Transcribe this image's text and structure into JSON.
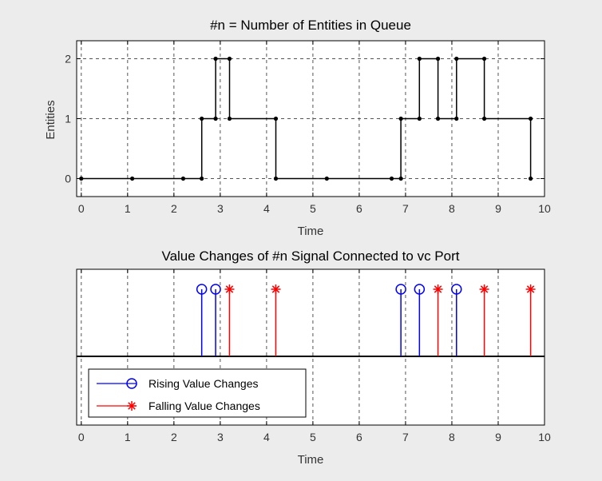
{
  "chart_data": [
    {
      "type": "line",
      "step": true,
      "title": "#n = Number of Entities in Queue",
      "xlabel": "Time",
      "ylabel": "Entities",
      "xlim": [
        -0.1,
        10
      ],
      "ylim": [
        -0.3,
        2.3
      ],
      "xticks": [
        0,
        1,
        2,
        3,
        4,
        5,
        6,
        7,
        8,
        9,
        10
      ],
      "yticks": [
        0,
        1,
        2
      ],
      "grid": true,
      "color": "#000000",
      "points": [
        [
          0,
          0
        ],
        [
          1.1,
          0
        ],
        [
          2.2,
          0
        ],
        [
          2.6,
          0
        ],
        [
          2.6,
          1
        ],
        [
          2.9,
          1
        ],
        [
          2.9,
          2
        ],
        [
          3.2,
          2
        ],
        [
          3.2,
          1
        ],
        [
          4.2,
          1
        ],
        [
          4.2,
          0
        ],
        [
          5.3,
          0
        ],
        [
          6.7,
          0
        ],
        [
          6.9,
          0
        ],
        [
          6.9,
          1
        ],
        [
          7.3,
          1
        ],
        [
          7.3,
          2
        ],
        [
          7.7,
          2
        ],
        [
          7.7,
          1
        ],
        [
          8.1,
          1
        ],
        [
          8.1,
          2
        ],
        [
          8.7,
          2
        ],
        [
          8.7,
          1
        ],
        [
          9.7,
          1
        ],
        [
          9.7,
          0
        ]
      ]
    },
    {
      "type": "stem",
      "title": "Value Changes of #n Signal Connected to vc Port",
      "xlabel": "Time",
      "xlim": [
        -0.1,
        10
      ],
      "xticks": [
        0,
        1,
        2,
        3,
        4,
        5,
        6,
        7,
        8,
        9,
        10
      ],
      "grid": true,
      "legend_position": "bottom-left",
      "series": [
        {
          "name": "Rising Value Changes",
          "marker": "circle",
          "color": "#0000ff",
          "x": [
            2.6,
            2.9,
            6.9,
            7.3,
            8.1
          ]
        },
        {
          "name": "Falling Value Changes",
          "marker": "asterisk",
          "color": "#ff0000",
          "x": [
            3.2,
            4.2,
            7.7,
            8.7,
            9.7
          ]
        }
      ]
    }
  ]
}
